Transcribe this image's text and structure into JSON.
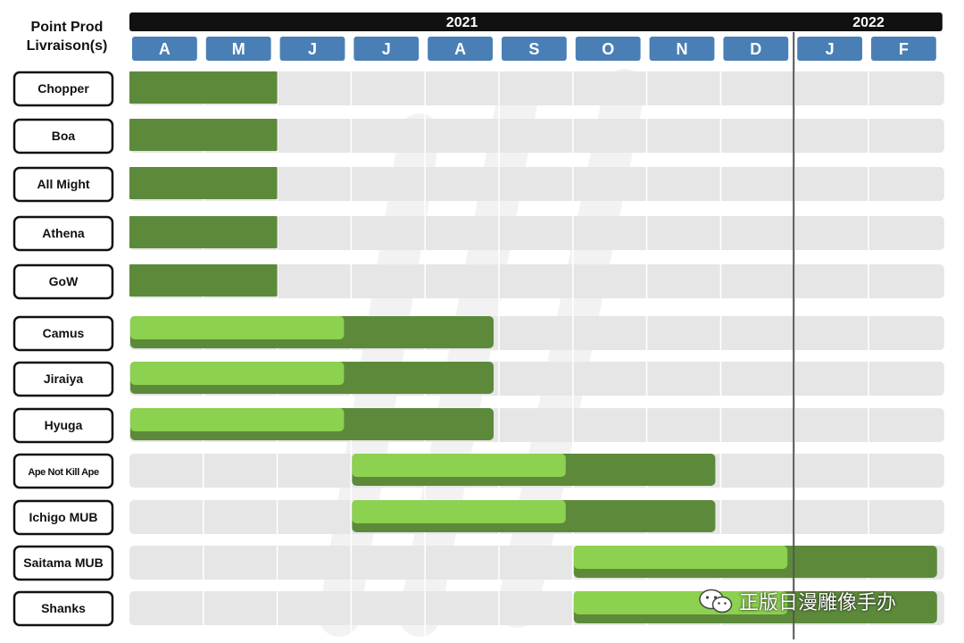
{
  "header": {
    "line1": "Point Prod",
    "line2": "Livraison(s)"
  },
  "watermark": {
    "text": "正版日漫雕像手办",
    "icon": "wechat-icon"
  },
  "colors": {
    "year_bar": "#111111",
    "month_tab": "#4a7fb5",
    "track": "#e6e6e6",
    "bar_dark": "#5c8a3a",
    "bar_light": "#8cd14f",
    "divider": "#555555",
    "label_border": "#111111"
  },
  "chart_data": {
    "type": "gantt",
    "years": [
      {
        "label": "2021",
        "start_month": 0,
        "end_month": 9
      },
      {
        "label": "2022",
        "start_month": 9,
        "end_month": 11
      }
    ],
    "months": [
      "A",
      "M",
      "J",
      "J",
      "A",
      "S",
      "O",
      "N",
      "D",
      "J",
      "F"
    ],
    "year_divider_after_month": 9,
    "tasks": [
      {
        "name": "Chopper",
        "dark": [
          0,
          2
        ],
        "light": null
      },
      {
        "name": "Boa",
        "dark": [
          0,
          2
        ],
        "light": null
      },
      {
        "name": "All Might",
        "dark": [
          0,
          2
        ],
        "light": null
      },
      {
        "name": "Athena",
        "dark": [
          0,
          2
        ],
        "light": null
      },
      {
        "name": "GoW",
        "dark": [
          0,
          2
        ],
        "light": null
      },
      {
        "name": "Camus",
        "dark": [
          0,
          5
        ],
        "light": [
          0,
          3
        ]
      },
      {
        "name": "Jiraiya",
        "dark": [
          0,
          5
        ],
        "light": [
          0,
          3
        ]
      },
      {
        "name": "Hyuga",
        "dark": [
          0,
          5
        ],
        "light": [
          0,
          3
        ]
      },
      {
        "name": "Ape Not Kill Ape",
        "dark": [
          3,
          8
        ],
        "light": [
          3,
          6
        ]
      },
      {
        "name": "Ichigo MUB",
        "dark": [
          3,
          8
        ],
        "light": [
          3,
          6
        ]
      },
      {
        "name": "Saitama MUB",
        "dark": [
          6,
          11
        ],
        "light": [
          6,
          9
        ]
      },
      {
        "name": "Shanks",
        "dark": [
          6,
          11
        ],
        "light": [
          6,
          9
        ]
      }
    ]
  }
}
